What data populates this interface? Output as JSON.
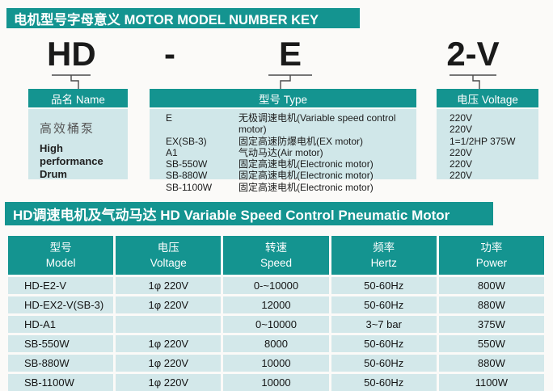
{
  "colors": {
    "teal": "#149490",
    "light_blue": "#d0e7e9",
    "row_blue": "#d3e8ea"
  },
  "section1": {
    "title": "电机型号字母意义  MOTOR MODEL NUMBER KEY",
    "model": [
      "HD",
      "-",
      "E",
      "2-V"
    ],
    "columns": [
      {
        "header": "品名 Name",
        "lines": [
          "高效桶泵",
          "High performance",
          "Drum"
        ]
      },
      {
        "header": "型号 Type",
        "rows": [
          {
            "code": "E",
            "desc": "无极调速电机(Variable speed control motor)"
          },
          {
            "code": "EX(SB-3)",
            "desc": "固定高速防爆电机(EX motor)"
          },
          {
            "code": "A1",
            "desc": "气动马达(Air motor)"
          },
          {
            "code": "SB-550W",
            "desc": "固定高速电机(Electronic motor)"
          },
          {
            "code": "SB-880W",
            "desc": "固定高速电机(Electronic motor)"
          },
          {
            "code": "SB-1100W",
            "desc": "固定高速电机(Electronic motor)"
          }
        ]
      },
      {
        "header": "电压 Voltage",
        "lines": [
          "220V",
          "220V",
          "1=1/2HP 375W",
          "220V",
          "220V",
          "220V"
        ]
      }
    ]
  },
  "section2": {
    "title": "HD调速电机及气动马达 HD Variable Speed Control Pneumatic Motor",
    "table": {
      "headers": [
        {
          "zh": "型号",
          "en": "Model"
        },
        {
          "zh": "电压",
          "en": "Voltage"
        },
        {
          "zh": "转速",
          "en": "Speed"
        },
        {
          "zh": "频率",
          "en": "Hertz"
        },
        {
          "zh": "功率",
          "en": "Power"
        }
      ],
      "rows": [
        [
          "HD-E2-V",
          "1φ 220V",
          "0-~10000",
          "50-60Hz",
          "800W"
        ],
        [
          "HD-EX2-V(SB-3)",
          "1φ 220V",
          "12000",
          "50-60Hz",
          "880W"
        ],
        [
          "HD-A1",
          "",
          "0~10000",
          "3~7 bar",
          "375W"
        ],
        [
          "SB-550W",
          "1φ 220V",
          "8000",
          "50-60Hz",
          "550W"
        ],
        [
          "SB-880W",
          "1φ 220V",
          "10000",
          "50-60Hz",
          "880W"
        ],
        [
          "SB-1100W",
          "1φ 220V",
          "10000",
          "50-60Hz",
          "1100W"
        ]
      ]
    }
  }
}
